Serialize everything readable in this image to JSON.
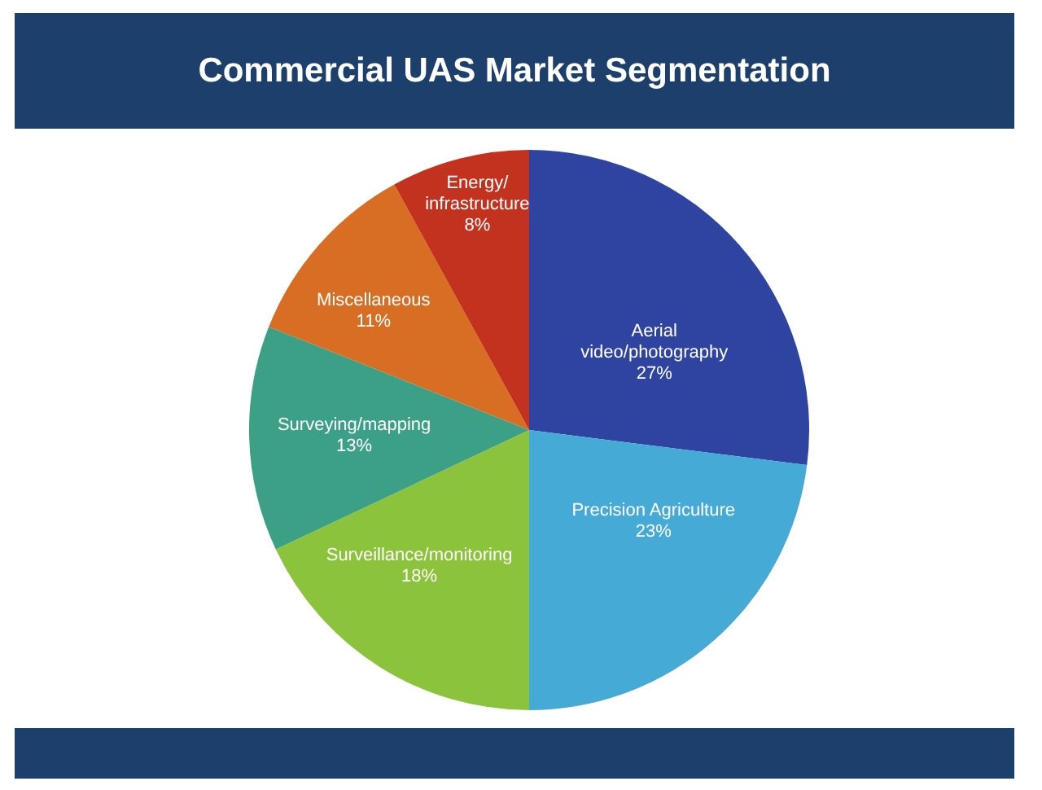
{
  "chart_data": {
    "type": "pie",
    "title": "Commercial UAS Market Segmentation",
    "categories": [
      "Aerial video/photography",
      "Precision Agriculture",
      "Surveillance/monitoring",
      "Surveying/mapping",
      "Miscellaneous",
      "Energy/infrastructure"
    ],
    "values": [
      27,
      23,
      18,
      13,
      11,
      8
    ],
    "value_labels": [
      "27%",
      "23%",
      "18%",
      "13%",
      "11%",
      "8%"
    ],
    "colors": [
      "#2f43a0",
      "#46aad7",
      "#8cc33c",
      "#3ca087",
      "#d76e23",
      "#c3321e"
    ]
  }
}
